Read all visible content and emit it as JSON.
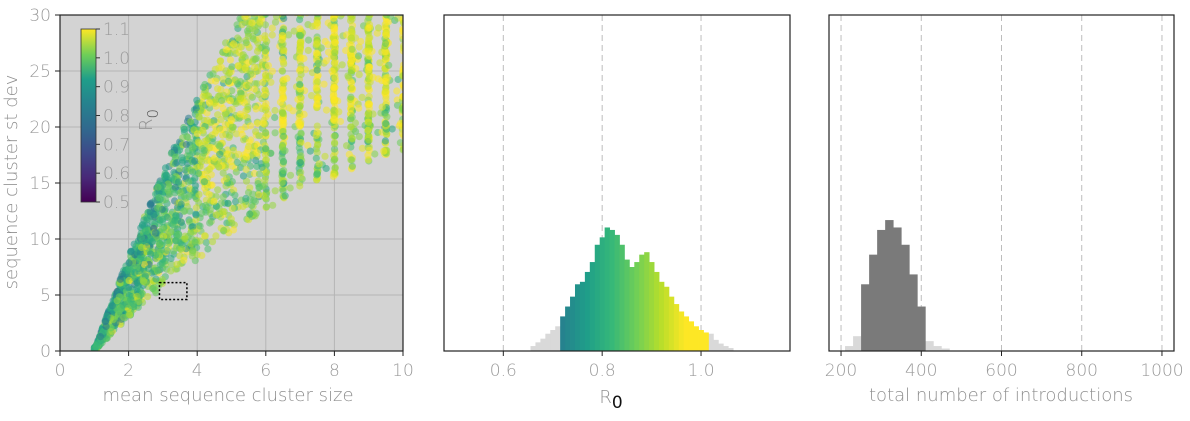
{
  "chart_data": [
    {
      "type": "scatter",
      "xlabel": "mean sequence cluster size",
      "ylabel": "sequence cluster st dev",
      "xlim": [
        0,
        10
      ],
      "ylim": [
        0,
        30
      ],
      "x_ticks": [
        "0",
        "2",
        "4",
        "6",
        "8",
        "10"
      ],
      "y_ticks": [
        "0",
        "5",
        "10",
        "15",
        "20",
        "25",
        "30"
      ],
      "grid": true,
      "background": "#d3d3d3",
      "colorbar": {
        "label": "R",
        "label_subscript": "0",
        "range": [
          0.5,
          1.1
        ],
        "ticks": [
          "0.5",
          "0.6",
          "0.7",
          "0.8",
          "0.9",
          "1.0",
          "1.1"
        ],
        "colormap": "viridis",
        "placement": "top-left inset"
      },
      "highlight_box": {
        "x": [
          2.9,
          3.7
        ],
        "y": [
          4.6,
          6.1
        ],
        "style": "dotted"
      },
      "description_points": "dense point cloud; st dev rises roughly 4x mean near origin, cloud spans mean 1 to 10 and st dev 0 to 30, columns of points at integer means above 6"
    },
    {
      "type": "bar",
      "xlabel": "R",
      "xlabel_subscript": "0",
      "xlim": [
        0.48,
        1.18
      ],
      "x_ticks": [
        "0.6",
        "0.8",
        "1.0"
      ],
      "x_tick_values": [
        0.6,
        0.8,
        1.0
      ],
      "grid": "vertical dashed",
      "bin_width": 0.01,
      "background_hist": {
        "color": "#d9d9d9",
        "bins": [
          {
            "x": 0.66,
            "y": 0.2
          },
          {
            "x": 0.67,
            "y": 0.35
          },
          {
            "x": 0.68,
            "y": 0.5
          },
          {
            "x": 0.69,
            "y": 0.7
          },
          {
            "x": 0.7,
            "y": 0.85
          },
          {
            "x": 0.71,
            "y": 1.0
          },
          {
            "x": 1.02,
            "y": 0.7
          },
          {
            "x": 1.03,
            "y": 0.45
          },
          {
            "x": 1.04,
            "y": 0.3
          },
          {
            "x": 1.05,
            "y": 0.2
          },
          {
            "x": 1.06,
            "y": 0.12
          }
        ]
      },
      "colored_hist": {
        "colormap": "viridis",
        "color_range": [
          0.5,
          1.1
        ],
        "bins": [
          {
            "x": 0.72,
            "y": 1.4
          },
          {
            "x": 0.73,
            "y": 1.8
          },
          {
            "x": 0.74,
            "y": 2.2
          },
          {
            "x": 0.75,
            "y": 2.7
          },
          {
            "x": 0.76,
            "y": 2.8
          },
          {
            "x": 0.77,
            "y": 3.2
          },
          {
            "x": 0.78,
            "y": 3.6
          },
          {
            "x": 0.79,
            "y": 4.3
          },
          {
            "x": 0.8,
            "y": 4.6
          },
          {
            "x": 0.81,
            "y": 5.0
          },
          {
            "x": 0.82,
            "y": 4.9
          },
          {
            "x": 0.83,
            "y": 4.7
          },
          {
            "x": 0.84,
            "y": 4.3
          },
          {
            "x": 0.85,
            "y": 3.7
          },
          {
            "x": 0.86,
            "y": 3.4
          },
          {
            "x": 0.87,
            "y": 3.6
          },
          {
            "x": 0.88,
            "y": 3.9
          },
          {
            "x": 0.89,
            "y": 4.0
          },
          {
            "x": 0.9,
            "y": 3.6
          },
          {
            "x": 0.91,
            "y": 3.2
          },
          {
            "x": 0.92,
            "y": 2.8
          },
          {
            "x": 0.93,
            "y": 2.6
          },
          {
            "x": 0.94,
            "y": 2.2
          },
          {
            "x": 0.95,
            "y": 1.9
          },
          {
            "x": 0.96,
            "y": 1.6
          },
          {
            "x": 0.97,
            "y": 1.4
          },
          {
            "x": 0.98,
            "y": 1.2
          },
          {
            "x": 0.99,
            "y": 1.0
          },
          {
            "x": 1.0,
            "y": 0.85
          },
          {
            "x": 1.01,
            "y": 0.75
          }
        ]
      },
      "ymax": 13.6
    },
    {
      "type": "bar",
      "xlabel": "total number of introductions",
      "xlim": [
        170,
        1030
      ],
      "x_ticks": [
        "200",
        "400",
        "600",
        "800",
        "1000"
      ],
      "x_tick_values": [
        200,
        400,
        600,
        800,
        1000
      ],
      "grid": "vertical dashed",
      "bin_width": 20,
      "background_hist": {
        "color": "#d9d9d9",
        "bins": [
          {
            "x": 220,
            "y": 0.2
          },
          {
            "x": 240,
            "y": 0.6
          },
          {
            "x": 260,
            "y": 1.3
          },
          {
            "x": 420,
            "y": 0.4
          },
          {
            "x": 440,
            "y": 0.2
          },
          {
            "x": 460,
            "y": 0.1
          }
        ]
      },
      "colored_hist": {
        "color": "#7a7a7a",
        "bins": [
          {
            "x": 260,
            "y": 2.7
          },
          {
            "x": 280,
            "y": 3.9
          },
          {
            "x": 300,
            "y": 4.9
          },
          {
            "x": 320,
            "y": 5.3
          },
          {
            "x": 340,
            "y": 5.0
          },
          {
            "x": 360,
            "y": 4.3
          },
          {
            "x": 380,
            "y": 3.1
          },
          {
            "x": 400,
            "y": 1.8
          }
        ]
      },
      "ymax": 13.6
    }
  ]
}
